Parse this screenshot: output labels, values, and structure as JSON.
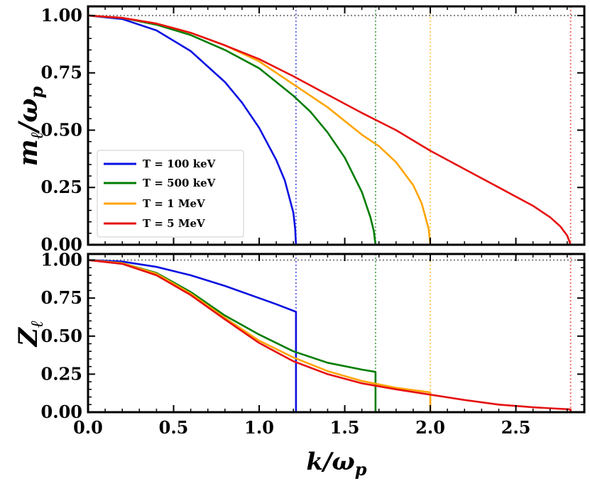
{
  "chart_data": [
    {
      "type": "line",
      "panel": "top",
      "ylabel": "m_ℓ/ω_p",
      "ylabel_main": "m",
      "ylabel_sub": "ℓ",
      "ylabel_rest": "/ω",
      "ylabel_sub2": "p",
      "ylim": [
        0,
        1.04
      ],
      "xlim": [
        0,
        2.9
      ],
      "yticks": [
        "0.00",
        "0.25",
        "0.50",
        "0.75",
        "1.00"
      ],
      "legend_position": "lower-left",
      "reference_line": {
        "y": 1.0,
        "color": "#808080",
        "style": "dotted"
      },
      "series": [
        {
          "name": "T = 100 keV",
          "color": "#0a10e0",
          "kmax": 1.215,
          "x": [
            0,
            0.2,
            0.4,
            0.6,
            0.8,
            0.9,
            1.0,
            1.1,
            1.15,
            1.2,
            1.21,
            1.215
          ],
          "y": [
            1.0,
            0.985,
            0.935,
            0.845,
            0.71,
            0.62,
            0.51,
            0.37,
            0.28,
            0.14,
            0.07,
            0.0
          ]
        },
        {
          "name": "T = 500 keV",
          "color": "#007d00",
          "kmax": 1.68,
          "x": [
            0,
            0.2,
            0.4,
            0.6,
            0.8,
            1.0,
            1.2,
            1.3,
            1.4,
            1.5,
            1.6,
            1.65,
            1.67,
            1.68
          ],
          "y": [
            1.0,
            0.99,
            0.96,
            0.915,
            0.85,
            0.77,
            0.65,
            0.58,
            0.49,
            0.38,
            0.23,
            0.12,
            0.06,
            0.0
          ]
        },
        {
          "name": "T = 1 MeV",
          "color": "#ffa500",
          "kmax": 2.0,
          "x": [
            0,
            0.2,
            0.4,
            0.6,
            0.8,
            1.0,
            1.2,
            1.4,
            1.6,
            1.7,
            1.8,
            1.9,
            1.95,
            1.99,
            2.0
          ],
          "y": [
            1.0,
            0.99,
            0.965,
            0.925,
            0.87,
            0.8,
            0.7,
            0.6,
            0.48,
            0.43,
            0.36,
            0.26,
            0.18,
            0.07,
            0.0
          ]
        },
        {
          "name": "T = 5 MeV",
          "color": "#e61010",
          "kmax": 2.82,
          "x": [
            0,
            0.2,
            0.4,
            0.6,
            0.8,
            1.0,
            1.2,
            1.4,
            1.6,
            1.8,
            2.0,
            2.2,
            2.4,
            2.6,
            2.7,
            2.76,
            2.8,
            2.82
          ],
          "y": [
            1.0,
            0.99,
            0.965,
            0.925,
            0.87,
            0.81,
            0.735,
            0.655,
            0.575,
            0.5,
            0.41,
            0.33,
            0.25,
            0.17,
            0.12,
            0.08,
            0.04,
            0.0
          ]
        }
      ]
    },
    {
      "type": "line",
      "panel": "bottom",
      "ylabel": "Z_ℓ",
      "ylabel_main": "Z",
      "ylabel_sub": "ℓ",
      "xlabel": "k/ω_p",
      "xlabel_main": "k/ω",
      "xlabel_sub": "p",
      "ylim": [
        0,
        1.04
      ],
      "xlim": [
        0,
        2.9
      ],
      "yticks": [
        "0.00",
        "0.25",
        "0.50",
        "0.75",
        "1.00"
      ],
      "xticks": [
        {
          "value": 0.0,
          "label": "0.0"
        },
        {
          "value": 0.5,
          "label": "0.5"
        },
        {
          "value": 1.0,
          "label": "1.0"
        },
        {
          "value": 1.5,
          "label": "1.5"
        },
        {
          "value": 2.0,
          "label": "2.0"
        },
        {
          "value": 2.5,
          "label": "2.5"
        }
      ],
      "reference_line": {
        "y": 1.0,
        "color": "#808080",
        "style": "dotted"
      },
      "series": [
        {
          "name": "T = 100 keV",
          "color": "#0a10e0",
          "kmax": 1.215,
          "x": [
            0,
            0.2,
            0.4,
            0.6,
            0.8,
            1.0,
            1.1,
            1.215
          ],
          "y": [
            1.0,
            0.99,
            0.955,
            0.9,
            0.83,
            0.75,
            0.71,
            0.66
          ]
        },
        {
          "name": "T = 500 keV",
          "color": "#007d00",
          "kmax": 1.68,
          "x": [
            0,
            0.2,
            0.4,
            0.6,
            0.8,
            1.0,
            1.2,
            1.4,
            1.6,
            1.68
          ],
          "y": [
            1.0,
            0.98,
            0.915,
            0.79,
            0.635,
            0.51,
            0.4,
            0.325,
            0.28,
            0.265
          ]
        },
        {
          "name": "T = 1 MeV",
          "color": "#ffa500",
          "kmax": 2.0,
          "x": [
            0,
            0.2,
            0.4,
            0.6,
            0.8,
            1.0,
            1.2,
            1.4,
            1.6,
            1.8,
            2.0
          ],
          "y": [
            1.0,
            0.98,
            0.91,
            0.78,
            0.62,
            0.47,
            0.36,
            0.27,
            0.205,
            0.16,
            0.13
          ]
        },
        {
          "name": "T = 5 MeV",
          "color": "#e61010",
          "kmax": 2.82,
          "x": [
            0,
            0.2,
            0.4,
            0.6,
            0.8,
            1.0,
            1.2,
            1.4,
            1.6,
            1.8,
            2.0,
            2.2,
            2.4,
            2.6,
            2.82
          ],
          "y": [
            1.0,
            0.975,
            0.9,
            0.77,
            0.61,
            0.455,
            0.335,
            0.25,
            0.19,
            0.15,
            0.115,
            0.08,
            0.05,
            0.032,
            0.018
          ]
        }
      ]
    }
  ]
}
